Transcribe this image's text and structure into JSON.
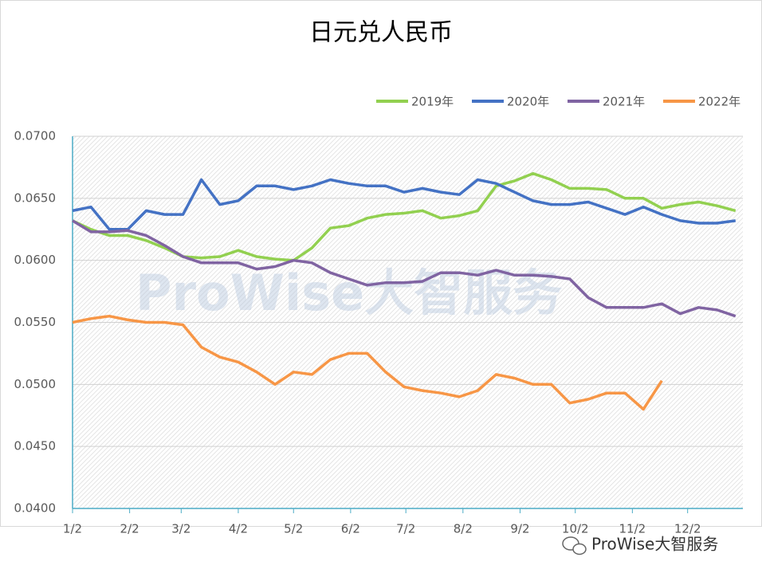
{
  "chart_data": {
    "type": "line",
    "title": "日元兑人民币",
    "watermark": "ProWise大智服务",
    "footer": "ProWise大智服务",
    "x": [
      0,
      10,
      20,
      30,
      40,
      50,
      60,
      70,
      80,
      90,
      100,
      110,
      120,
      130,
      140,
      150,
      160,
      170,
      180,
      190,
      200,
      210,
      220,
      230,
      240,
      250,
      260,
      270,
      280,
      290,
      300,
      310,
      320,
      330,
      340,
      350,
      360
    ],
    "xlim": [
      0,
      364
    ],
    "xticks": [
      {
        "value": 0,
        "label": "1/2"
      },
      {
        "value": 31,
        "label": "2/2"
      },
      {
        "value": 59,
        "label": "3/2"
      },
      {
        "value": 90,
        "label": "4/2"
      },
      {
        "value": 120,
        "label": "5/2"
      },
      {
        "value": 151,
        "label": "6/2"
      },
      {
        "value": 181,
        "label": "7/2"
      },
      {
        "value": 212,
        "label": "8/2"
      },
      {
        "value": 243,
        "label": "9/2"
      },
      {
        "value": 273,
        "label": "10/2"
      },
      {
        "value": 304,
        "label": "11/2"
      },
      {
        "value": 334,
        "label": "12/2"
      }
    ],
    "ylim": [
      0.04,
      0.07
    ],
    "yticks": [
      {
        "value": 0.04,
        "label": "0.0400"
      },
      {
        "value": 0.045,
        "label": "0.0450"
      },
      {
        "value": 0.05,
        "label": "0.0500"
      },
      {
        "value": 0.055,
        "label": "0.0550"
      },
      {
        "value": 0.06,
        "label": "0.0600"
      },
      {
        "value": 0.065,
        "label": "0.0650"
      },
      {
        "value": 0.07,
        "label": "0.0700"
      }
    ],
    "grid": true,
    "legend": "top-right",
    "series": [
      {
        "name": "2019年",
        "color": "#92d050",
        "values": [
          0.0632,
          0.0625,
          0.062,
          0.062,
          0.0616,
          0.061,
          0.0603,
          0.0602,
          0.0603,
          0.0608,
          0.0603,
          0.0601,
          0.06,
          0.061,
          0.0626,
          0.0628,
          0.0634,
          0.0637,
          0.0638,
          0.064,
          0.0634,
          0.0636,
          0.064,
          0.066,
          0.0664,
          0.067,
          0.0665,
          0.0658,
          0.0658,
          0.0657,
          0.065,
          0.065,
          0.0642,
          0.0645,
          0.0647,
          0.0644,
          0.064
        ]
      },
      {
        "name": "2020年",
        "color": "#4472c4",
        "values": [
          0.064,
          0.0643,
          0.0625,
          0.0625,
          0.064,
          0.0637,
          0.0637,
          0.0665,
          0.0645,
          0.0648,
          0.066,
          0.066,
          0.0657,
          0.066,
          0.0665,
          0.0662,
          0.066,
          0.066,
          0.0655,
          0.0658,
          0.0655,
          0.0653,
          0.0665,
          0.0662,
          0.0655,
          0.0648,
          0.0645,
          0.0645,
          0.0647,
          0.0642,
          0.0637,
          0.0643,
          0.0637,
          0.0632,
          0.063,
          0.063,
          0.0632
        ]
      },
      {
        "name": "2021年",
        "color": "#8064a2",
        "values": [
          0.0632,
          0.0623,
          0.0623,
          0.0624,
          0.062,
          0.0612,
          0.0603,
          0.0598,
          0.0598,
          0.0598,
          0.0593,
          0.0595,
          0.06,
          0.0598,
          0.059,
          0.0585,
          0.058,
          0.0582,
          0.0582,
          0.0583,
          0.059,
          0.059,
          0.0588,
          0.0592,
          0.0588,
          0.0588,
          0.0587,
          0.0585,
          0.057,
          0.0562,
          0.0562,
          0.0562,
          0.0565,
          0.0557,
          0.0562,
          0.056,
          0.0555
        ]
      },
      {
        "name": "2022年",
        "color": "#f79646",
        "values": [
          0.055,
          0.0553,
          0.0555,
          0.0552,
          0.055,
          0.055,
          0.0548,
          0.053,
          0.0522,
          0.0518,
          0.051,
          0.05,
          0.051,
          0.0508,
          0.052,
          0.0525,
          0.0525,
          0.051,
          0.0498,
          0.0495,
          0.0493,
          0.049,
          0.0495,
          0.0508,
          0.0505,
          0.05,
          0.05,
          0.0485,
          0.0488,
          0.0493,
          0.0493,
          0.048,
          0.0503,
          null,
          null,
          null,
          null
        ]
      }
    ]
  }
}
